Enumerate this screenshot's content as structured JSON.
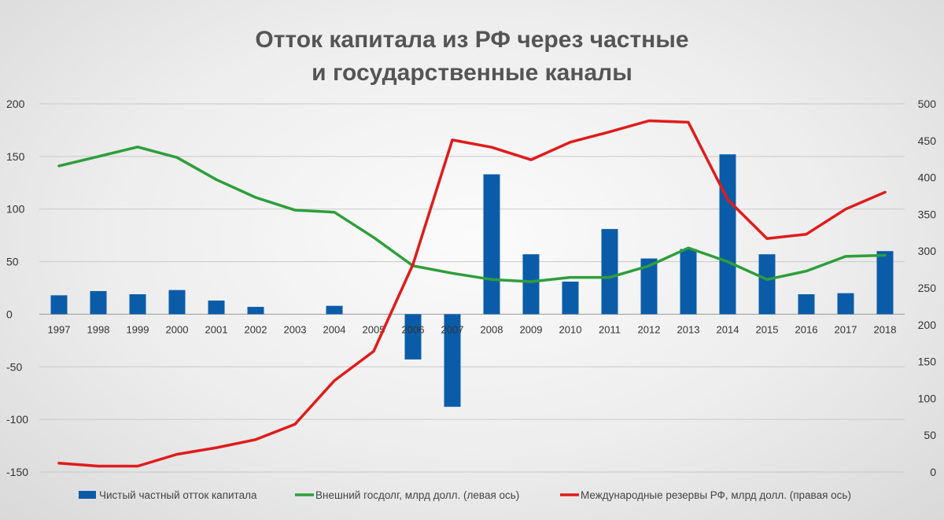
{
  "chart_data": {
    "type": "bar+line",
    "title_lines": [
      "Отток капитала из РФ через частные",
      "и государственные каналы"
    ],
    "categories": [
      "1997",
      "1998",
      "1999",
      "2000",
      "2001",
      "2002",
      "2003",
      "2004",
      "2005",
      "2006",
      "2007",
      "2008",
      "2009",
      "2010",
      "2011",
      "2012",
      "2013",
      "2014",
      "2015",
      "2016",
      "2017",
      "2018"
    ],
    "y_left": {
      "range": [
        -150,
        200
      ],
      "ticks": [
        "200",
        "150",
        "100",
        "50",
        "0",
        "-50",
        "-100",
        "-150"
      ]
    },
    "y_right": {
      "range": [
        0,
        500
      ],
      "ticks": [
        "500",
        "450",
        "400",
        "350",
        "300",
        "250",
        "200",
        "150",
        "100",
        "50",
        "0"
      ]
    },
    "grid": true,
    "legend_position": "bottom",
    "series": [
      {
        "name": "Чистый частный отток капитала",
        "type": "bar",
        "axis": "left",
        "color": "#0B5CA8",
        "values": [
          18,
          22,
          19,
          23,
          13,
          7,
          0,
          8,
          0,
          -43,
          -88,
          133,
          57,
          31,
          81,
          53,
          62,
          152,
          57,
          19,
          20,
          60
        ]
      },
      {
        "name": "Внешний госдолг, млрд долл. (левая ось)",
        "type": "line",
        "axis": "left",
        "color": "#2E9E3A",
        "values": [
          141,
          150,
          159,
          149,
          128,
          111,
          99,
          97,
          73,
          46,
          39,
          33,
          31,
          35,
          35,
          46,
          63,
          50,
          33,
          41,
          55,
          56
        ]
      },
      {
        "name": "Международные резервы РФ, млрд долл. (правая ось)",
        "type": "line",
        "axis": "right",
        "color": "#E01B1B",
        "values": [
          12,
          8,
          8,
          24,
          33,
          44,
          65,
          124,
          164,
          282,
          451,
          441,
          424,
          448,
          462,
          477,
          475,
          370,
          317,
          323,
          357,
          380
        ]
      }
    ]
  }
}
